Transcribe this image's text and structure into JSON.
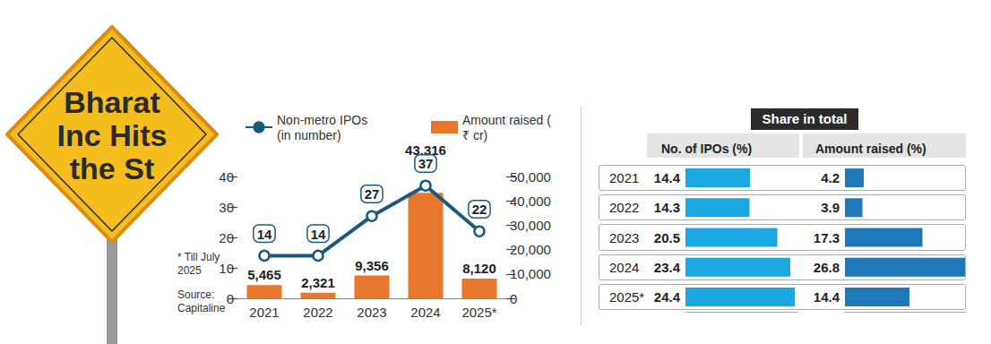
{
  "panel_title": "Share in total",
  "chart_data": [
    {
      "type": "bar",
      "title": "Bharat Inc Hits the St",
      "annotations": [
        "* Till July 2025",
        "Source: Capitaline"
      ],
      "categories": [
        "2021",
        "2022",
        "2023",
        "2024",
        "2025*"
      ],
      "series": [
        {
          "name": "Non-metro IPOs (in number)",
          "type": "line",
          "color": "#1c5a7d",
          "marker": "circle",
          "line_style": "solid",
          "values": [
            14,
            14,
            27,
            37,
            22
          ]
        },
        {
          "name": "Amount raised (₹ cr)",
          "type": "bar",
          "color": "#e8772e",
          "axis": "y2",
          "values": [
            5465,
            2321,
            9356,
            43316,
            8120
          ],
          "value_labels": [
            "5,465",
            "2,321",
            "9,356",
            "43,316",
            "8,120"
          ]
        }
      ],
      "ylim": [
        0,
        40
      ],
      "yticks": [
        0,
        10,
        20,
        30,
        40
      ],
      "y2lim": [
        0,
        50000
      ],
      "y2ticks": [
        0,
        {
          "value": 10000,
          "label": "10,000"
        },
        {
          "value": 20000,
          "label": "20,000"
        },
        {
          "value": 30000,
          "label": "30,000"
        },
        {
          "value": 40000,
          "label": "40,000"
        },
        {
          "value": 50000,
          "label": "50,000"
        }
      ],
      "grid": false,
      "legend": "top",
      "data_labels": true
    },
    {
      "type": "bar",
      "orientation": "horizontal",
      "title": "No. of IPOs (%)",
      "categories": [
        "2021",
        "2022",
        "2023",
        "2024",
        "2025*"
      ],
      "values": [
        14.4,
        14.3,
        20.5,
        23.4,
        24.4
      ],
      "color": "#1ba8e0",
      "xlim": [
        0,
        25
      ],
      "grid": false,
      "data_labels": true,
      "tick_labels": "y"
    },
    {
      "type": "bar",
      "orientation": "horizontal",
      "title": "Amount raised (%)",
      "categories": [
        "2021",
        "2022",
        "2023",
        "2024",
        "2025*"
      ],
      "values": [
        4.2,
        3.9,
        17.3,
        26.8,
        14.4
      ],
      "color": "#1f78b8",
      "xlim": [
        0,
        27
      ],
      "grid": false,
      "data_labels": true,
      "tick_labels": false
    }
  ]
}
